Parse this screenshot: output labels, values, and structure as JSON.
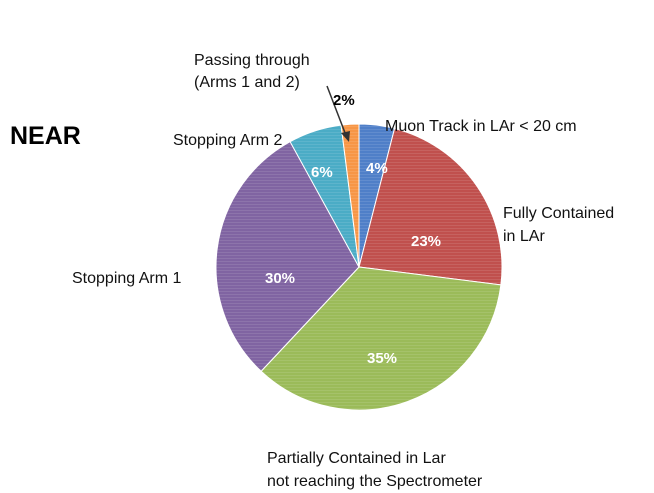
{
  "chart_data": {
    "type": "pie",
    "title": "NEAR",
    "slices": [
      {
        "label": "Muon Track in LAr < 20 cm",
        "value": 4,
        "pct_label": "4%",
        "color": "#4F7FC8"
      },
      {
        "label": "Fully Contained in LAr",
        "value": 23,
        "pct_label": "23%",
        "color": "#C0504D"
      },
      {
        "label": "Partially Contained in Lar not reaching the Spectrometer",
        "value": 35,
        "pct_label": "35%",
        "color": "#9BBB59"
      },
      {
        "label": "Stopping Arm 1",
        "value": 30,
        "pct_label": "30%",
        "color": "#8064A2"
      },
      {
        "label": "Stopping Arm 2",
        "value": 6,
        "pct_label": "6%",
        "color": "#4BACC6"
      },
      {
        "label": "Passing through (Arms 1 and 2)",
        "value": 2,
        "pct_label": "2%",
        "color": "#F79646"
      }
    ]
  },
  "labels": {
    "muon_track": "Muon Track in LAr < 20 cm",
    "fully_line1": "Fully Contained",
    "fully_line2": "in LAr",
    "partial_line1": "Partially Contained in Lar",
    "partial_line2": "not reaching  the Spectrometer",
    "stop1": "Stopping Arm 1",
    "stop2": "Stopping Arm 2",
    "pass_line1": "Passing through",
    "pass_line2": "(Arms 1 and 2)"
  }
}
